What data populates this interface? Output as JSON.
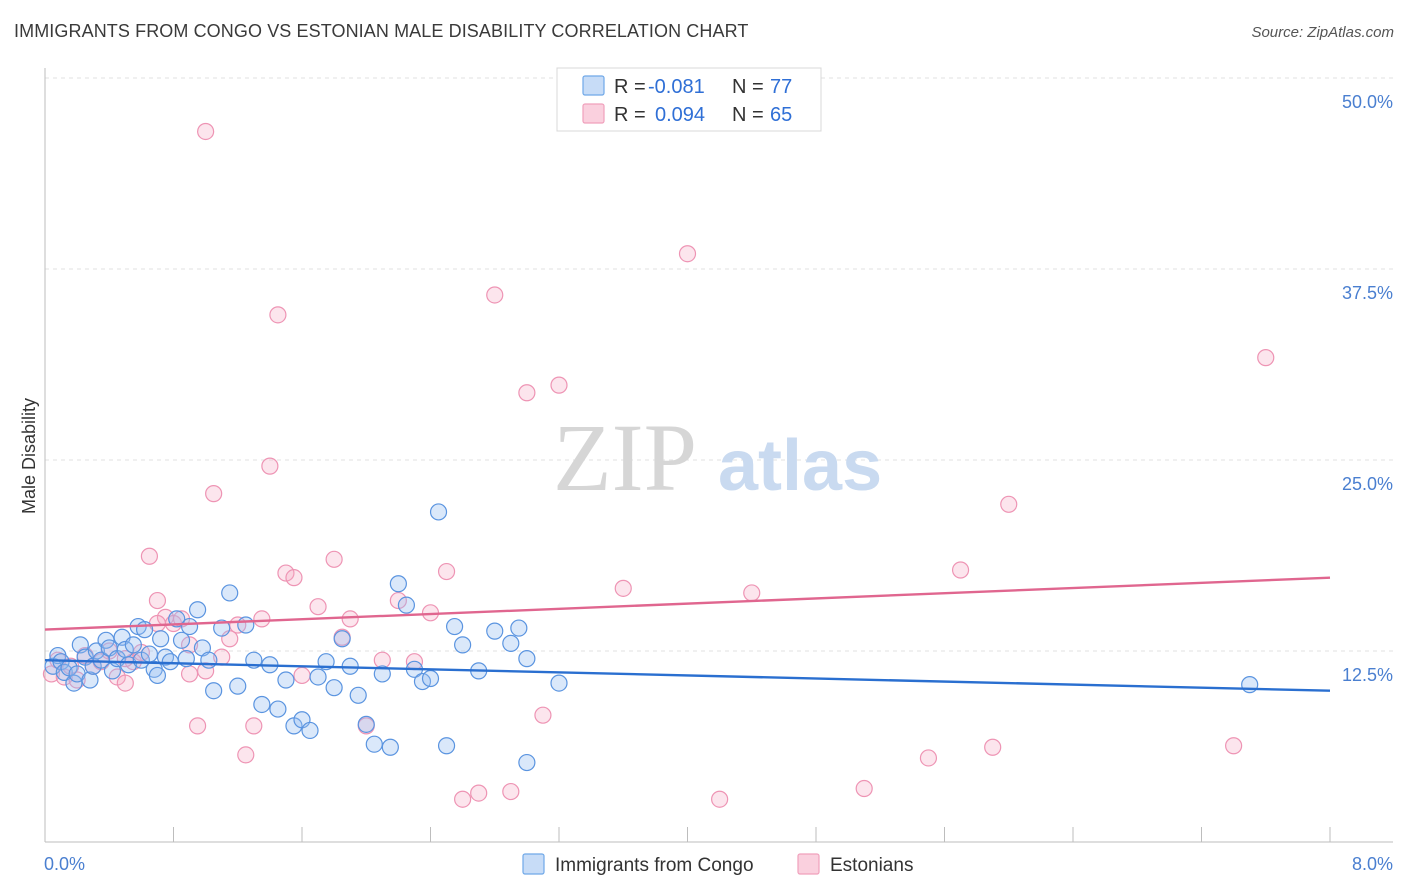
{
  "title": "IMMIGRANTS FROM CONGO VS ESTONIAN MALE DISABILITY CORRELATION CHART",
  "source": "Source: ZipAtlas.com",
  "watermark": {
    "zip": "ZIP",
    "atlas": "atlas"
  },
  "colors": {
    "blue": "#6fa8e8",
    "blue_line": "#2a6fd0",
    "pink": "#f0a0bc",
    "pink_line": "#e0668f",
    "tick_text": "#4a7fd0"
  },
  "legend": {
    "rows": [
      {
        "r_label": "R =",
        "r_value": "-0.081",
        "n_label": "N =",
        "n_value": "77"
      },
      {
        "r_label": "R =",
        "r_value": "0.094",
        "n_label": "N =",
        "n_value": "65"
      }
    ]
  },
  "chart_data": {
    "type": "scatter",
    "ylabel": "Male Disability",
    "xlim": [
      0,
      8
    ],
    "ylim": [
      0,
      50
    ],
    "x_tick_labels": [
      "0.0%",
      "8.0%"
    ],
    "y_ticks": [
      {
        "value": 12.5,
        "label": "12.5%"
      },
      {
        "value": 25.0,
        "label": "25.0%"
      },
      {
        "value": 37.5,
        "label": "37.5%"
      },
      {
        "value": 50.0,
        "label": "50.0%"
      }
    ],
    "series": [
      {
        "name": "Immigrants from Congo",
        "r": -0.081,
        "n": 77,
        "trend": [
          [
            0,
            11.9
          ],
          [
            8,
            9.9
          ]
        ],
        "points": [
          [
            0.05,
            11.5
          ],
          [
            0.08,
            12.2
          ],
          [
            0.1,
            11.8
          ],
          [
            0.12,
            11.1
          ],
          [
            0.15,
            11.4
          ],
          [
            0.18,
            10.4
          ],
          [
            0.2,
            11.0
          ],
          [
            0.22,
            12.9
          ],
          [
            0.25,
            12.1
          ],
          [
            0.28,
            10.6
          ],
          [
            0.3,
            11.5
          ],
          [
            0.32,
            12.5
          ],
          [
            0.35,
            11.9
          ],
          [
            0.38,
            13.2
          ],
          [
            0.4,
            12.7
          ],
          [
            0.42,
            11.2
          ],
          [
            0.45,
            12.0
          ],
          [
            0.48,
            13.4
          ],
          [
            0.5,
            12.6
          ],
          [
            0.52,
            11.6
          ],
          [
            0.55,
            12.9
          ],
          [
            0.58,
            14.1
          ],
          [
            0.6,
            11.9
          ],
          [
            0.62,
            13.9
          ],
          [
            0.65,
            12.3
          ],
          [
            0.68,
            11.3
          ],
          [
            0.7,
            10.9
          ],
          [
            0.72,
            13.3
          ],
          [
            0.75,
            12.1
          ],
          [
            0.78,
            11.8
          ],
          [
            0.82,
            14.6
          ],
          [
            0.85,
            13.2
          ],
          [
            0.88,
            12.0
          ],
          [
            0.9,
            14.1
          ],
          [
            0.95,
            15.2
          ],
          [
            0.98,
            12.7
          ],
          [
            1.02,
            11.9
          ],
          [
            1.05,
            9.9
          ],
          [
            1.1,
            14.0
          ],
          [
            1.15,
            16.3
          ],
          [
            1.2,
            10.2
          ],
          [
            1.25,
            14.2
          ],
          [
            1.3,
            11.9
          ],
          [
            1.35,
            9.0
          ],
          [
            1.4,
            11.6
          ],
          [
            1.45,
            8.7
          ],
          [
            1.5,
            10.6
          ],
          [
            1.55,
            7.6
          ],
          [
            1.6,
            8.0
          ],
          [
            1.65,
            7.3
          ],
          [
            1.7,
            10.8
          ],
          [
            1.75,
            11.8
          ],
          [
            1.8,
            10.1
          ],
          [
            1.85,
            13.3
          ],
          [
            1.9,
            11.5
          ],
          [
            1.95,
            9.6
          ],
          [
            2.0,
            7.7
          ],
          [
            2.05,
            6.4
          ],
          [
            2.1,
            11.0
          ],
          [
            2.15,
            6.2
          ],
          [
            2.2,
            16.9
          ],
          [
            2.25,
            15.5
          ],
          [
            2.3,
            11.3
          ],
          [
            2.35,
            10.5
          ],
          [
            2.4,
            10.7
          ],
          [
            2.45,
            21.6
          ],
          [
            2.5,
            6.3
          ],
          [
            2.55,
            14.1
          ],
          [
            2.6,
            12.9
          ],
          [
            2.7,
            11.2
          ],
          [
            2.8,
            13.8
          ],
          [
            2.9,
            13.0
          ],
          [
            3.0,
            12.0
          ],
          [
            3.2,
            10.4
          ],
          [
            3.0,
            5.2
          ],
          [
            2.95,
            14.0
          ],
          [
            7.5,
            10.3
          ]
        ]
      },
      {
        "name": "Estonians",
        "r": 0.094,
        "n": 65,
        "trend": [
          [
            0,
            13.9
          ],
          [
            8,
            17.3
          ]
        ],
        "points": [
          [
            0.04,
            11.0
          ],
          [
            0.08,
            11.9
          ],
          [
            0.12,
            10.8
          ],
          [
            0.16,
            11.5
          ],
          [
            0.2,
            10.6
          ],
          [
            0.25,
            12.2
          ],
          [
            0.3,
            11.5
          ],
          [
            0.35,
            11.8
          ],
          [
            0.4,
            12.5
          ],
          [
            0.45,
            10.8
          ],
          [
            0.5,
            10.4
          ],
          [
            0.55,
            11.8
          ],
          [
            0.6,
            12.4
          ],
          [
            0.65,
            18.7
          ],
          [
            0.7,
            15.8
          ],
          [
            0.75,
            14.7
          ],
          [
            0.8,
            14.3
          ],
          [
            0.85,
            14.6
          ],
          [
            0.9,
            11.0
          ],
          [
            0.95,
            7.6
          ],
          [
            1.0,
            11.2
          ],
          [
            1.05,
            22.8
          ],
          [
            1.1,
            12.1
          ],
          [
            1.15,
            13.3
          ],
          [
            1.2,
            14.2
          ],
          [
            1.25,
            5.7
          ],
          [
            1.3,
            7.6
          ],
          [
            1.35,
            14.6
          ],
          [
            1.4,
            24.6
          ],
          [
            1.45,
            34.5
          ],
          [
            1.5,
            17.6
          ],
          [
            1.55,
            17.3
          ],
          [
            1.6,
            10.9
          ],
          [
            1.7,
            15.4
          ],
          [
            1.8,
            18.5
          ],
          [
            1.85,
            13.4
          ],
          [
            1.9,
            14.6
          ],
          [
            2.0,
            7.6
          ],
          [
            2.1,
            11.9
          ],
          [
            2.2,
            15.8
          ],
          [
            2.3,
            11.8
          ],
          [
            2.4,
            15.0
          ],
          [
            2.5,
            17.7
          ],
          [
            2.6,
            2.8
          ],
          [
            2.7,
            3.2
          ],
          [
            2.8,
            35.8
          ],
          [
            2.9,
            3.3
          ],
          [
            3.0,
            29.4
          ],
          [
            3.1,
            8.3
          ],
          [
            3.2,
            29.9
          ],
          [
            3.6,
            16.6
          ],
          [
            4.0,
            38.5
          ],
          [
            4.2,
            2.8
          ],
          [
            4.4,
            16.3
          ],
          [
            5.1,
            3.5
          ],
          [
            5.5,
            5.5
          ],
          [
            5.7,
            17.8
          ],
          [
            5.9,
            6.2
          ],
          [
            6.0,
            22.1
          ],
          [
            7.4,
            6.3
          ],
          [
            7.6,
            31.7
          ],
          [
            1.0,
            46.5
          ],
          [
            0.7,
            14.3
          ],
          [
            0.9,
            12.9
          ],
          [
            0.5,
            12.0
          ]
        ]
      }
    ]
  }
}
